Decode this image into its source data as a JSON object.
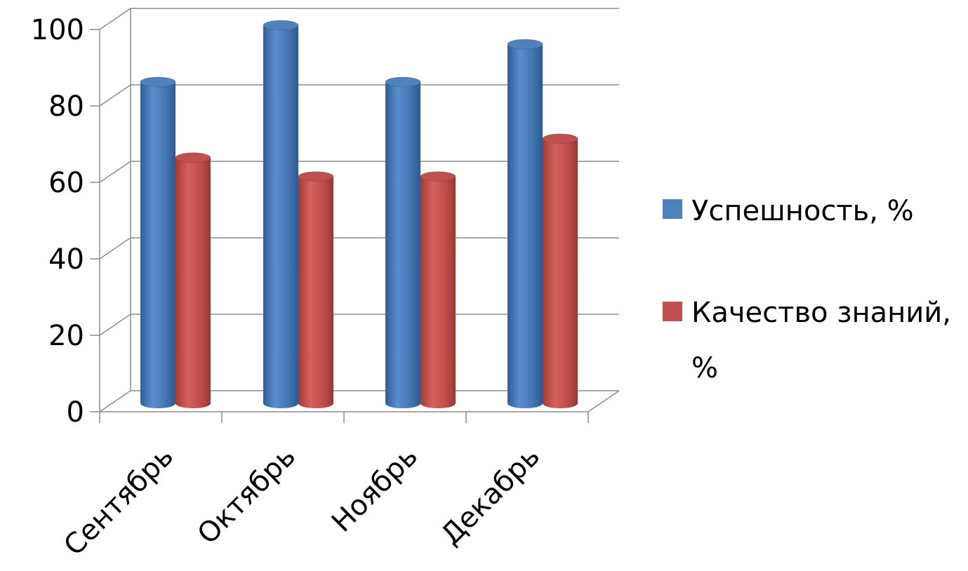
{
  "chart_data": {
    "type": "bar",
    "style": "3d-cylinder",
    "categories": [
      "Сентябрь",
      "Октябрь",
      "Ноябрь",
      "Декабрь"
    ],
    "series": [
      {
        "name": "Успешность, %",
        "values": [
          85,
          100,
          85,
          95
        ],
        "color": "#4f81bd"
      },
      {
        "name": "Качество знаний, %",
        "values": [
          65,
          60,
          60,
          70
        ],
        "color": "#c0504d"
      }
    ],
    "ylim": [
      0,
      100
    ],
    "yticks": [
      0,
      20,
      40,
      60,
      80,
      100
    ],
    "grid": true,
    "legend": "right"
  }
}
